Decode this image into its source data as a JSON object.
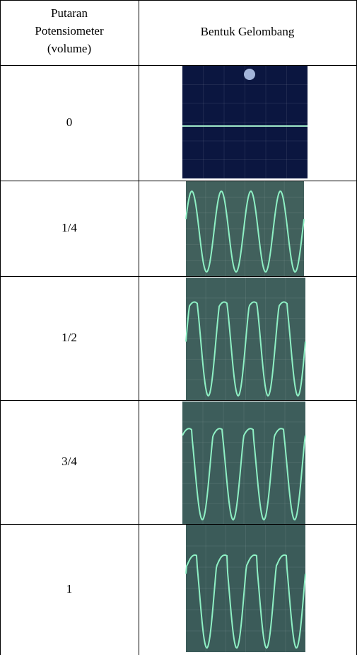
{
  "table": {
    "header": {
      "level_lines": [
        "Putaran",
        "Potensiometer",
        "(volume)"
      ],
      "waveform": "Bentuk Gelombang"
    },
    "rows": [
      "0",
      "1/4",
      "1/2",
      "3/4",
      "1"
    ]
  }
}
